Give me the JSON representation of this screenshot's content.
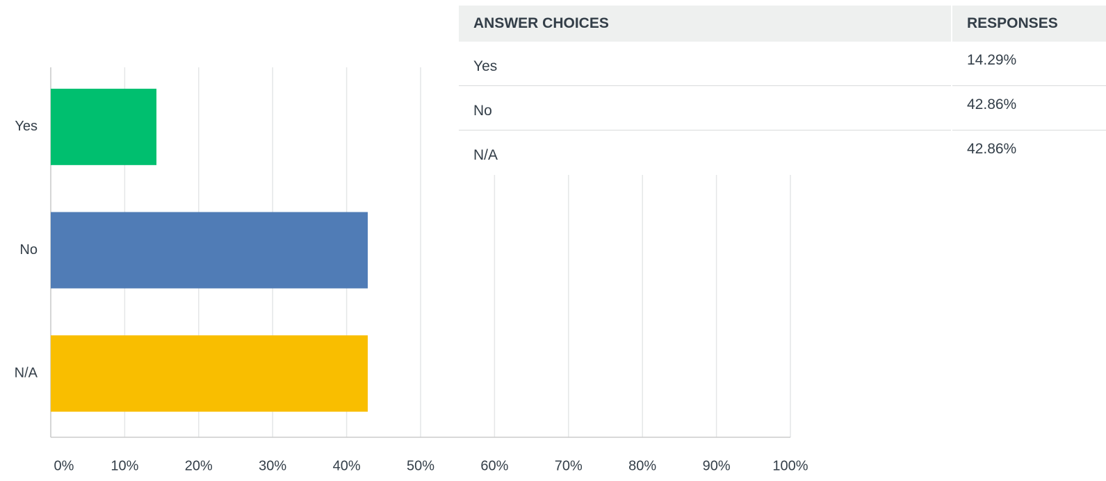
{
  "chart_data": {
    "type": "hbar",
    "categories": [
      "Yes",
      "No",
      "N/A"
    ],
    "values": [
      14.29,
      42.86,
      42.86
    ],
    "colors": [
      "#00bf6f",
      "#507cb6",
      "#f9be00"
    ],
    "xlim": [
      0,
      100
    ],
    "xticks": [
      {
        "value": 0,
        "label": "0%"
      },
      {
        "value": 10,
        "label": "10%"
      },
      {
        "value": 20,
        "label": "20%"
      },
      {
        "value": 30,
        "label": "30%"
      },
      {
        "value": 40,
        "label": "40%"
      },
      {
        "value": 50,
        "label": "50%"
      },
      {
        "value": 60,
        "label": "60%"
      },
      {
        "value": 70,
        "label": "70%"
      },
      {
        "value": 80,
        "label": "80%"
      },
      {
        "value": 90,
        "label": "90%"
      },
      {
        "value": 100,
        "label": "100%"
      }
    ],
    "grid": true
  },
  "table": {
    "header": [
      "ANSWER CHOICES",
      "RESPONSES"
    ],
    "rows": [
      [
        "Yes",
        "14.29%"
      ],
      [
        "No",
        "42.86%"
      ],
      [
        "N/A",
        "42.86%"
      ]
    ]
  }
}
